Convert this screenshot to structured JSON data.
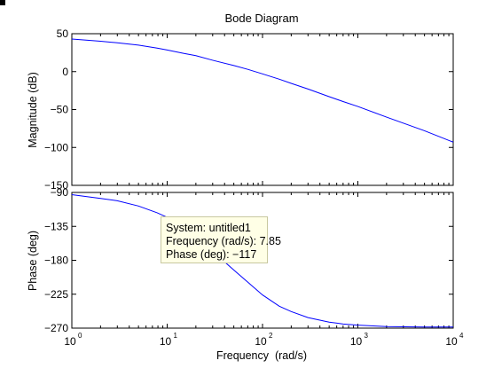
{
  "chart_data": {
    "title": "Bode Diagram",
    "xlabel": "Frequency  (rad/s)",
    "x_scale": "log",
    "xlim": [
      1,
      10000
    ],
    "x_ticks": [
      {
        "value": 1,
        "base": "10",
        "exp": "0"
      },
      {
        "value": 10,
        "base": "10",
        "exp": "1"
      },
      {
        "value": 100,
        "base": "10",
        "exp": "2"
      },
      {
        "value": 1000,
        "base": "10",
        "exp": "3"
      },
      {
        "value": 10000,
        "base": "10",
        "exp": "4"
      }
    ],
    "grid": false,
    "panels": [
      {
        "name": "magnitude",
        "type": "line",
        "ylabel": "Magnitude (dB)",
        "ylim": [
          -150,
          50
        ],
        "y_ticks": [
          {
            "value": 50,
            "label": "50"
          },
          {
            "value": 0,
            "label": "0"
          },
          {
            "value": -50,
            "label": "−50"
          },
          {
            "value": -100,
            "label": "−100"
          },
          {
            "value": -150,
            "label": "−150"
          }
        ],
        "series_color": "#0000ff",
        "x": [
          1,
          2,
          3,
          5,
          7.85,
          10,
          15,
          20,
          30,
          50,
          70,
          100,
          150,
          200,
          300,
          500,
          700,
          1000,
          2000,
          5000,
          10000
        ],
        "y": [
          43,
          40,
          38,
          35,
          31,
          28.5,
          24,
          21,
          15,
          8,
          3,
          -3,
          -10,
          -15.5,
          -23,
          -33,
          -39.5,
          -46,
          -60,
          -78,
          -93
        ]
      },
      {
        "name": "phase",
        "type": "line",
        "ylabel": "Phase (deg)",
        "ylim": [
          -270,
          -90
        ],
        "y_ticks": [
          {
            "value": -90,
            "label": "−90"
          },
          {
            "value": -135,
            "label": "−135"
          },
          {
            "value": -180,
            "label": "−180"
          },
          {
            "value": -225,
            "label": "−225"
          },
          {
            "value": -270,
            "label": "−270"
          }
        ],
        "series_color": "#0000ff",
        "x": [
          1,
          2,
          3,
          5,
          7.85,
          10,
          15,
          20,
          30,
          50,
          70,
          100,
          150,
          200,
          300,
          500,
          700,
          1000,
          2000,
          5000,
          10000
        ],
        "y": [
          -93,
          -98,
          -101,
          -108,
          -117,
          -123,
          -137,
          -149,
          -168,
          -193,
          -209,
          -226,
          -241,
          -248,
          -256,
          -262,
          -264.5,
          -266,
          -268,
          -268.5,
          -268.5
        ]
      }
    ],
    "datatip": {
      "x": 7.85,
      "y": -117,
      "lines": [
        "System: untitled1",
        "Frequency (rad/s): 7.85",
        "Phase (deg): −117"
      ]
    }
  }
}
